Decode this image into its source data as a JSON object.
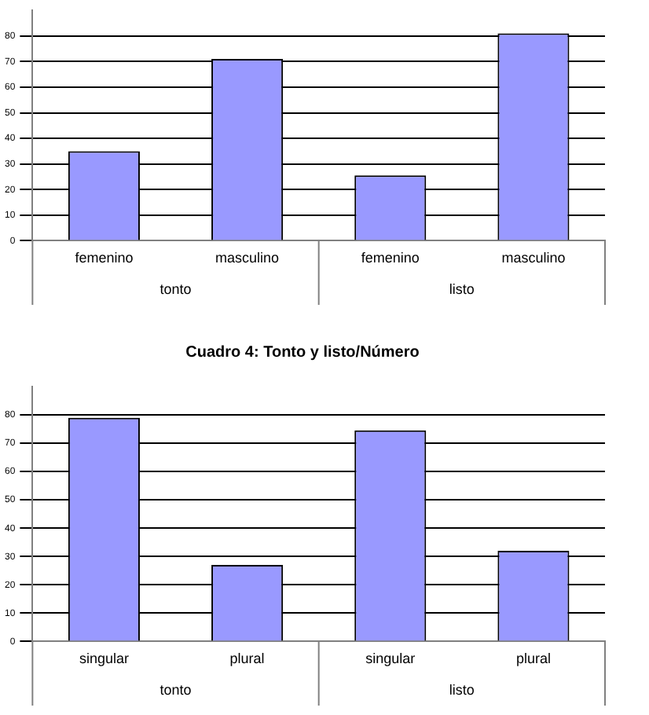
{
  "chart_data": [
    {
      "type": "bar",
      "categories": [
        "femenino",
        "masculino",
        "femenino",
        "masculino"
      ],
      "annotations": [
        "tonto",
        "listo"
      ],
      "series": [
        {
          "color": "#9999ff",
          "values": [
            35,
            71,
            25.5,
            81
          ]
        }
      ],
      "ylim": [
        0,
        90
      ],
      "yticks": [
        0,
        10,
        20,
        30,
        40,
        50,
        60,
        70,
        80
      ],
      "grid": "y",
      "legend": false
    },
    {
      "type": "bar",
      "title": "Cuadro 4: Tonto y listo/Número",
      "categories": [
        "singular",
        "plural",
        "singular",
        "plural"
      ],
      "annotations": [
        "tonto",
        "listo"
      ],
      "series": [
        {
          "color": "#9999ff",
          "values": [
            79,
            27,
            74.5,
            32
          ]
        }
      ],
      "ylim": [
        0,
        90
      ],
      "yticks": [
        0,
        10,
        20,
        30,
        40,
        50,
        60,
        70,
        80
      ],
      "grid": "y",
      "legend": false
    }
  ]
}
